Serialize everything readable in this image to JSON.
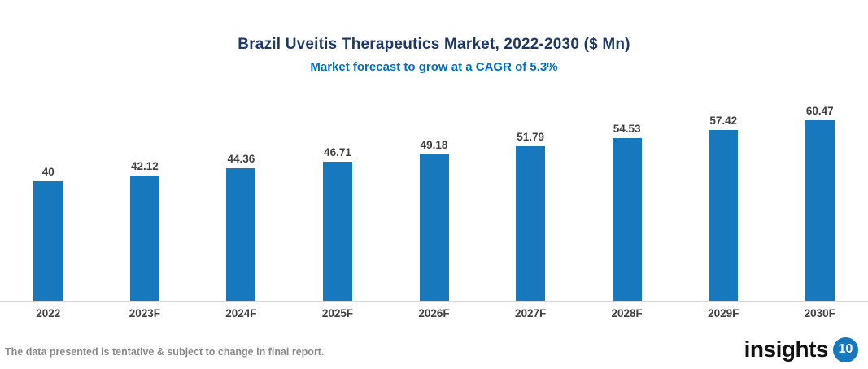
{
  "chart_data": {
    "type": "bar",
    "title": "Brazil Uveitis Therapeutics Market, 2022-2030 ($ Mn)",
    "subtitle": "Market forecast to grow at a CAGR of 5.3%",
    "categories": [
      "2022",
      "2023F",
      "2024F",
      "2025F",
      "2026F",
      "2027F",
      "2028F",
      "2029F",
      "2030F"
    ],
    "values": [
      40,
      42.12,
      44.36,
      46.71,
      49.18,
      51.79,
      54.53,
      57.42,
      60.47
    ],
    "value_labels": [
      "40",
      "42.12",
      "44.36",
      "46.71",
      "49.18",
      "51.79",
      "54.53",
      "57.42",
      "60.47"
    ],
    "xlabel": "",
    "ylabel": "",
    "ylim": [
      0,
      72
    ],
    "grid": false,
    "legend": false,
    "bar_color": "#1778BE",
    "value_label_position": "above-bar"
  },
  "footer": {
    "disclaimer": "The data presented is tentative & subject to change in final report.",
    "logo_text": "insights",
    "logo_number": "10"
  },
  "colors": {
    "title": "#1F3864",
    "subtitle": "#0070C0",
    "data_label": "#404040",
    "axis_line": "#D6D6D6",
    "disclaimer": "#8A8A8A",
    "logo_circle": "#1778BE",
    "background": "#FFFFFF"
  }
}
